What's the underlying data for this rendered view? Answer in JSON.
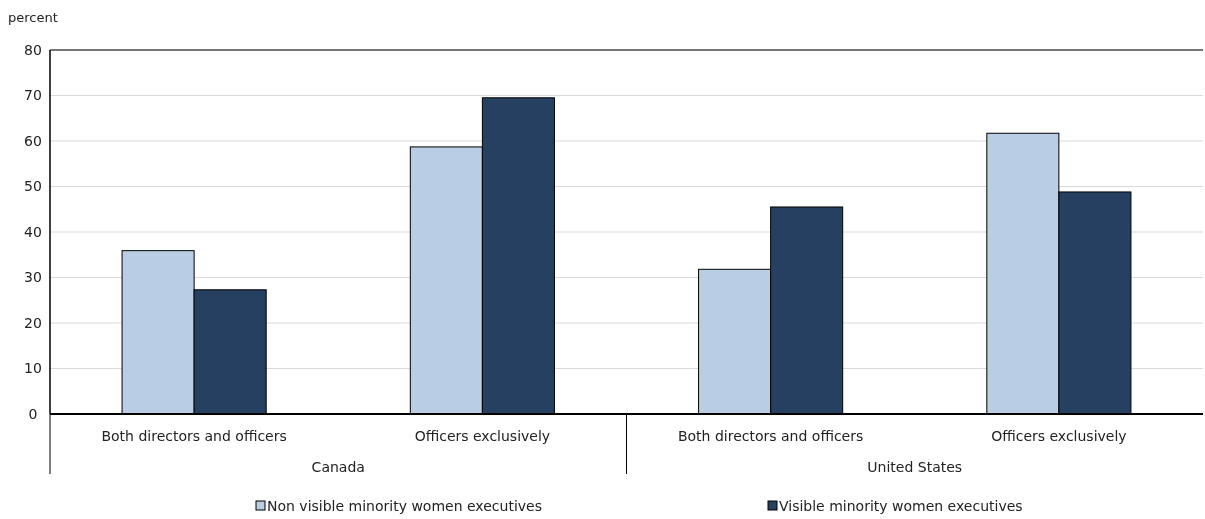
{
  "chart_data": {
    "type": "bar",
    "ylabel": "percent",
    "categories": [
      "Both directors and officers",
      "Officers exclusively",
      "Both directors and officers",
      "Officers exclusively"
    ],
    "series": [
      {
        "name": "Non visible minority women executives",
        "color": "#b9cde5",
        "values": [
          35.9,
          58.7,
          31.8,
          61.7
        ]
      },
      {
        "name": "Visible minority women executives",
        "color": "#254061",
        "values": [
          27.3,
          69.5,
          45.5,
          48.8
        ]
      }
    ],
    "annotations": [
      "Canada",
      "United States"
    ],
    "ylim": [
      0,
      80
    ],
    "yticks": [
      0,
      10,
      20,
      30,
      40,
      50,
      60,
      70,
      80
    ],
    "grid": "y",
    "legend": "bottom"
  }
}
